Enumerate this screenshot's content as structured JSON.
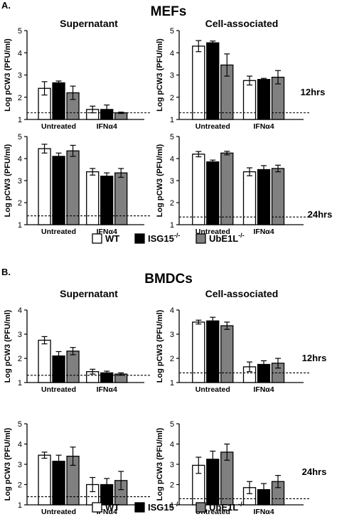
{
  "figure": {
    "panel_A": {
      "letter": "A.",
      "title": "MEFs",
      "col_titles": [
        "Supernatant",
        "Cell-associated"
      ],
      "row_labels": [
        "12hrs",
        "24hrs"
      ],
      "legend": [
        {
          "label": "WT",
          "fill": "#ffffff"
        },
        {
          "label": "ISG15",
          "sup": "-/-",
          "fill": "#000000"
        },
        {
          "label": "UbE1L",
          "sup": "-/-",
          "fill": "#808080"
        }
      ]
    },
    "panel_B": {
      "letter": "B.",
      "title": "BMDCs",
      "col_titles": [
        "Supernatant",
        "Cell-associated"
      ],
      "row_labels": [
        "12hrs",
        "24hrs"
      ],
      "legend": [
        {
          "label": "WT",
          "fill": "#ffffff"
        },
        {
          "label": "ISG15",
          "sup": "-/-",
          "fill": "#000000"
        },
        {
          "label": "UbE1L",
          "sup": "-/-",
          "fill": "#808080"
        }
      ]
    }
  },
  "chart_data": [
    {
      "panel": "A",
      "row": "12hrs",
      "column": "Supernatant",
      "type": "bar",
      "ylabel": "Log pCW3 (PFU/ml)",
      "ylim": [
        1,
        5
      ],
      "yticks": [
        1,
        2,
        3,
        4,
        5
      ],
      "categories": [
        "Untreated",
        "IFNα4"
      ],
      "detection_limit": 1.3,
      "series": [
        {
          "name": "WT",
          "values": [
            2.4,
            1.45
          ],
          "errors": [
            0.3,
            0.15
          ]
        },
        {
          "name": "ISG15-/-",
          "values": [
            2.65,
            1.45
          ],
          "errors": [
            0.08,
            0.2
          ]
        },
        {
          "name": "UbE1L-/-",
          "values": [
            2.2,
            1.3
          ],
          "errors": [
            0.3,
            0.03
          ]
        }
      ]
    },
    {
      "panel": "A",
      "row": "12hrs",
      "column": "Cell-associated",
      "type": "bar",
      "ylabel": "Log pCW3 (PFU/ml)",
      "ylim": [
        1,
        5
      ],
      "yticks": [
        1,
        2,
        3,
        4,
        5
      ],
      "categories": [
        "Untreated",
        "IFNα4"
      ],
      "detection_limit": 1.3,
      "series": [
        {
          "name": "WT",
          "values": [
            4.3,
            2.75
          ],
          "errors": [
            0.25,
            0.2
          ]
        },
        {
          "name": "ISG15-/-",
          "values": [
            4.45,
            2.8
          ],
          "errors": [
            0.08,
            0.05
          ]
        },
        {
          "name": "UbE1L-/-",
          "values": [
            3.45,
            2.9
          ],
          "errors": [
            0.5,
            0.3
          ]
        }
      ]
    },
    {
      "panel": "A",
      "row": "24hrs",
      "column": "Supernatant",
      "type": "bar",
      "ylabel": "Log pCW3 (PFU/ml)",
      "ylim": [
        1,
        5
      ],
      "yticks": [
        1,
        2,
        3,
        4,
        5
      ],
      "categories": [
        "Untreated",
        "IFNα4"
      ],
      "detection_limit": 1.4,
      "series": [
        {
          "name": "WT",
          "values": [
            4.45,
            3.4
          ],
          "errors": [
            0.2,
            0.15
          ]
        },
        {
          "name": "ISG15-/-",
          "values": [
            4.1,
            3.2
          ],
          "errors": [
            0.15,
            0.15
          ]
        },
        {
          "name": "UbE1L-/-",
          "values": [
            4.35,
            3.35
          ],
          "errors": [
            0.25,
            0.2
          ]
        }
      ]
    },
    {
      "panel": "A",
      "row": "24hrs",
      "column": "Cell-associated",
      "type": "bar",
      "ylabel": "Log pCW3 (PFU/ml)",
      "ylim": [
        1,
        5
      ],
      "yticks": [
        1,
        2,
        3,
        4,
        5
      ],
      "categories": [
        "Untreated",
        "IFNα4"
      ],
      "detection_limit": 1.35,
      "series": [
        {
          "name": "WT",
          "values": [
            4.2,
            3.4
          ],
          "errors": [
            0.12,
            0.18
          ]
        },
        {
          "name": "ISG15-/-",
          "values": [
            3.85,
            3.5
          ],
          "errors": [
            0.08,
            0.18
          ]
        },
        {
          "name": "UbE1L-/-",
          "values": [
            4.25,
            3.55
          ],
          "errors": [
            0.08,
            0.15
          ]
        }
      ]
    },
    {
      "panel": "B",
      "row": "12hrs",
      "column": "Supernatant",
      "type": "bar",
      "ylabel": "Log pCW3 (PFU/ml)",
      "ylim": [
        1,
        4
      ],
      "yticks": [
        1,
        2,
        3,
        4
      ],
      "categories": [
        "Untreated",
        "IFNα4"
      ],
      "detection_limit": 1.3,
      "series": [
        {
          "name": "WT",
          "values": [
            2.75,
            1.45
          ],
          "errors": [
            0.15,
            0.1
          ]
        },
        {
          "name": "ISG15-/-",
          "values": [
            2.1,
            1.4
          ],
          "errors": [
            0.18,
            0.07
          ]
        },
        {
          "name": "UbE1L-/-",
          "values": [
            2.3,
            1.35
          ],
          "errors": [
            0.15,
            0.05
          ]
        }
      ]
    },
    {
      "panel": "B",
      "row": "12hrs",
      "column": "Cell-associated",
      "type": "bar",
      "ylabel": "Log pCW3 (PFU/ml)",
      "ylim": [
        1,
        4
      ],
      "yticks": [
        1,
        2,
        3,
        4
      ],
      "categories": [
        "Untreated",
        "IFNα4"
      ],
      "detection_limit": 1.4,
      "series": [
        {
          "name": "WT",
          "values": [
            3.5,
            1.65
          ],
          "errors": [
            0.08,
            0.2
          ]
        },
        {
          "name": "ISG15-/-",
          "values": [
            3.55,
            1.75
          ],
          "errors": [
            0.15,
            0.15
          ]
        },
        {
          "name": "UbE1L-/-",
          "values": [
            3.35,
            1.8
          ],
          "errors": [
            0.15,
            0.2
          ]
        }
      ]
    },
    {
      "panel": "B",
      "row": "24hrs",
      "column": "Supernatant",
      "type": "bar",
      "ylabel": "Log pCW3 (PFU/ml)",
      "ylim": [
        1,
        5
      ],
      "yticks": [
        1,
        2,
        3,
        4,
        5
      ],
      "categories": [
        "Untreated",
        "IFNα4"
      ],
      "detection_limit": 1.4,
      "series": [
        {
          "name": "WT",
          "values": [
            3.45,
            2.0
          ],
          "errors": [
            0.15,
            0.35
          ]
        },
        {
          "name": "ISG15-/-",
          "values": [
            3.15,
            2.0
          ],
          "errors": [
            0.3,
            0.3
          ]
        },
        {
          "name": "UbE1L-/-",
          "values": [
            3.4,
            2.2
          ],
          "errors": [
            0.45,
            0.45
          ]
        }
      ]
    },
    {
      "panel": "B",
      "row": "24hrs",
      "column": "Cell-associated",
      "type": "bar",
      "ylabel": "Log pCW3 (PFU/ml)",
      "ylim": [
        1,
        5
      ],
      "yticks": [
        1,
        2,
        3,
        4,
        5
      ],
      "categories": [
        "Untreated",
        "IFNα4"
      ],
      "detection_limit": 1.3,
      "series": [
        {
          "name": "WT",
          "values": [
            2.95,
            1.85
          ],
          "errors": [
            0.4,
            0.3
          ]
        },
        {
          "name": "ISG15-/-",
          "values": [
            3.25,
            1.75
          ],
          "errors": [
            0.4,
            0.3
          ]
        },
        {
          "name": "UbE1L-/-",
          "values": [
            3.6,
            2.15
          ],
          "errors": [
            0.4,
            0.3
          ]
        }
      ]
    }
  ]
}
